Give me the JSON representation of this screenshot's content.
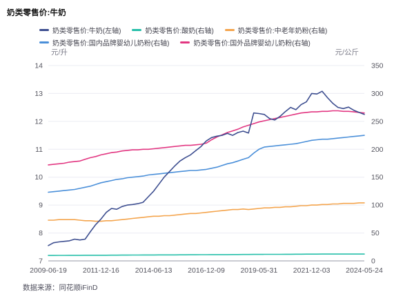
{
  "header": {
    "title": "奶类零售价:牛奶"
  },
  "footer": {
    "source": "数据来源：同花顺iFinD"
  },
  "colors": {
    "grid": "#ebecf3",
    "axis_line": "#b9bac4",
    "tick_text": "#55555f",
    "unit_text": "#7b7b88"
  },
  "chart_data": {
    "type": "line",
    "title": "奶类零售价:牛奶",
    "x_range": {
      "start": "2009-06-19",
      "end": "2024-05-24"
    },
    "x_ticks": [
      "2009-06-19",
      "2011-12-16",
      "2014-06-13",
      "2016-12-09",
      "2019-05-31",
      "2021-12-03",
      "2024-05-24"
    ],
    "left_axis": {
      "unit": "元/升",
      "min": 7,
      "max": 14,
      "ticks": [
        14,
        13,
        12,
        11,
        10,
        9,
        8,
        7
      ]
    },
    "right_axis": {
      "unit": "元/公斤",
      "min": 0,
      "max": 350,
      "ticks": [
        350,
        300,
        250,
        200,
        150,
        100,
        50,
        0
      ]
    },
    "legend_position": "top",
    "grid": "horizontal",
    "sampling_note": "values are quarterly samples, evenly spaced from 2009-06-19 to 2024-05-24",
    "series": [
      {
        "name": "奶类零售价:牛奶(左轴)",
        "axis": "left",
        "color": "#3c4d8f",
        "values": [
          7.55,
          7.65,
          7.68,
          7.7,
          7.72,
          7.78,
          7.75,
          7.78,
          8.05,
          8.3,
          8.5,
          8.74,
          8.88,
          8.85,
          8.95,
          9.0,
          9.02,
          9.05,
          9.1,
          9.3,
          9.5,
          9.75,
          10.0,
          10.2,
          10.4,
          10.58,
          10.7,
          10.8,
          10.95,
          11.1,
          11.3,
          11.42,
          11.47,
          11.5,
          11.57,
          11.5,
          11.6,
          11.65,
          11.58,
          12.3,
          12.28,
          12.25,
          12.1,
          12.05,
          12.18,
          12.35,
          12.5,
          12.42,
          12.6,
          12.7,
          13.0,
          12.98,
          13.08,
          12.85,
          12.65,
          12.5,
          12.46,
          12.51,
          12.4,
          12.32,
          12.25
        ]
      },
      {
        "name": "奶类零售价:酸奶(右轴)",
        "axis": "right",
        "color": "#25bfa9",
        "values": [
          9.8,
          9.8,
          9.9,
          9.9,
          10.0,
          10.0,
          10.0,
          10.1,
          10.1,
          10.1,
          10.2,
          10.2,
          10.3,
          10.3,
          10.4,
          10.4,
          10.5,
          10.5,
          10.6,
          10.6,
          10.6,
          10.7,
          10.7,
          10.8,
          10.8,
          10.9,
          10.9,
          11.0,
          11.0,
          11.1,
          11.1,
          11.2,
          11.2,
          11.3,
          11.3,
          11.4,
          11.4,
          11.5,
          11.5,
          11.6,
          11.6,
          11.7,
          11.7,
          11.8,
          11.8,
          11.9,
          11.9,
          12.0,
          12.0,
          12.1,
          12.1,
          12.1,
          12.2,
          12.2,
          12.2,
          12.3,
          12.3,
          12.3,
          12.3,
          12.3,
          12.3
        ]
      },
      {
        "name": "奶类零售价:中老年奶粉(右轴)",
        "axis": "right",
        "color": "#f4a44c",
        "values": [
          73,
          73,
          74,
          74,
          74,
          74,
          73,
          72,
          72,
          71,
          71,
          72,
          72,
          73,
          74,
          75,
          76,
          77,
          78,
          79,
          80,
          80,
          81,
          81,
          82,
          83,
          84,
          85,
          85,
          86,
          87,
          88,
          89,
          90,
          91,
          92,
          92,
          93,
          92,
          93,
          94,
          95,
          95,
          96,
          96,
          97,
          97,
          98,
          99,
          99,
          100,
          100,
          101,
          101,
          102,
          102,
          103,
          103,
          103,
          104,
          104
        ]
      },
      {
        "name": "奶类零售价:国内品牌婴幼儿奶粉(右轴)",
        "axis": "right",
        "color": "#4a8fd9",
        "values": [
          123,
          124,
          125,
          126,
          127,
          128,
          130,
          132,
          134,
          137,
          140,
          142,
          144,
          146,
          147,
          149,
          150,
          151,
          152,
          154,
          155,
          156,
          157,
          158,
          159,
          160,
          161,
          162,
          162,
          163,
          164,
          166,
          168,
          171,
          174,
          176,
          179,
          182,
          185,
          193,
          200,
          204,
          205,
          206,
          207,
          208,
          209,
          210,
          212,
          214,
          216,
          217,
          218,
          218,
          219,
          220,
          221,
          222,
          223,
          224,
          225
        ]
      },
      {
        "name": "奶类零售价:国外品牌婴幼儿奶粉(右轴)",
        "axis": "right",
        "color": "#e23681",
        "values": [
          172,
          173,
          174,
          175,
          177,
          178,
          179,
          182,
          185,
          187,
          190,
          192,
          194,
          195,
          197,
          198,
          199,
          199,
          200,
          200,
          201,
          202,
          203,
          204,
          205,
          206,
          207,
          207,
          208,
          209,
          211,
          217,
          222,
          226,
          230,
          233,
          236,
          240,
          243,
          246,
          249,
          251,
          253,
          255,
          257,
          259,
          261,
          263,
          265,
          266,
          267,
          267,
          268,
          268,
          269,
          269,
          268,
          268,
          267,
          266,
          265
        ]
      }
    ]
  }
}
